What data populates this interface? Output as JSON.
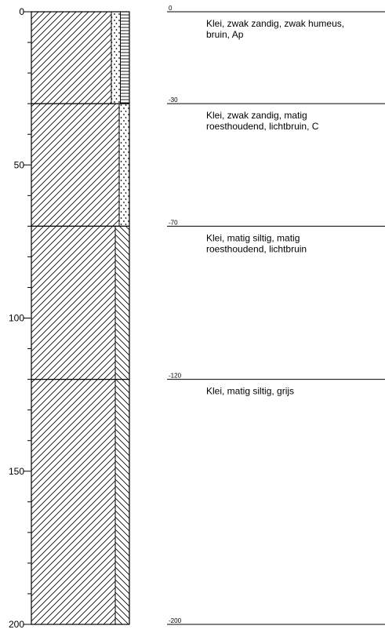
{
  "axis": {
    "ticks": [
      "0",
      "50",
      "100",
      "150",
      "200"
    ],
    "tick_values": [
      0,
      50,
      100,
      150,
      200
    ],
    "range": [
      0,
      200
    ],
    "minor_tick_step": 10
  },
  "layers": [
    {
      "top": 0,
      "bottom": 30,
      "top_label": "0",
      "description": [
        "Klei, zwak zandig, zwak humeus,",
        "bruin, Ap"
      ],
      "lithology": "clay",
      "admixture": [
        "sand",
        "humus"
      ]
    },
    {
      "top": 30,
      "bottom": 70,
      "top_label": "-30",
      "description": [
        "Klei, zwak zandig, matig",
        "roesthoudend, lichtbruin, C"
      ],
      "lithology": "clay",
      "admixture": [
        "sand"
      ]
    },
    {
      "top": 70,
      "bottom": 120,
      "top_label": "-70",
      "description": [
        "Klei, matig siltig, matig",
        "roesthoudend, lichtbruin"
      ],
      "lithology": "clay",
      "admixture": [
        "silt"
      ]
    },
    {
      "top": 120,
      "bottom": 200,
      "top_label": "-120",
      "description": [
        "Klei, matig siltig, grijs"
      ],
      "lithology": "clay",
      "admixture": [
        "silt"
      ]
    }
  ],
  "bottom_label": "-200",
  "colors": {
    "line": "#000000",
    "background": "#ffffff"
  }
}
